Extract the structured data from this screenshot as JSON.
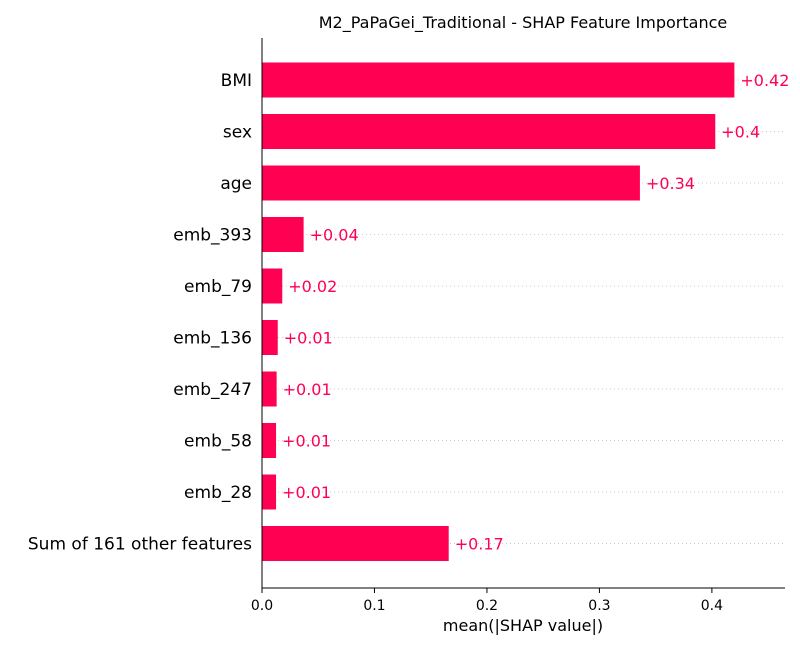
{
  "chart_data": {
    "type": "bar",
    "orientation": "horizontal",
    "title": "M2_PaPaGei_Traditional - SHAP Feature Importance",
    "xlabel": "mean(|SHAP value|)",
    "ylabel": "",
    "xlim": [
      0,
      0.465
    ],
    "xticks": [
      0.0,
      0.1,
      0.2,
      0.3,
      0.4
    ],
    "xtick_labels": [
      "0.0",
      "0.1",
      "0.2",
      "0.3",
      "0.4"
    ],
    "grid": "dotted horizontal row lines",
    "bar_color": "#ff0052",
    "categories": [
      "BMI",
      "sex",
      "age",
      "emb_393",
      "emb_79",
      "emb_136",
      "emb_247",
      "emb_58",
      "emb_28",
      "Sum of 161 other features"
    ],
    "values": [
      0.42,
      0.403,
      0.336,
      0.037,
      0.018,
      0.014,
      0.013,
      0.0125,
      0.0125,
      0.166
    ],
    "data_labels": [
      "+0.42",
      "+0.4",
      "+0.34",
      "+0.04",
      "+0.02",
      "+0.01",
      "+0.01",
      "+0.01",
      "+0.01",
      "+0.17"
    ]
  }
}
